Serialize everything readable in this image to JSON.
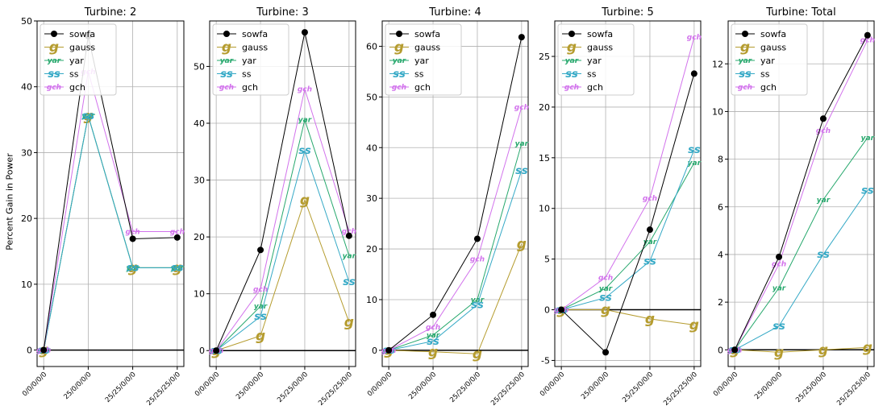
{
  "figure": {
    "ylabel": "Percent Gain in Power",
    "colors": {
      "sowfa": "#000000",
      "gauss": "#b59c2f",
      "yar": "#27a86d",
      "ss": "#35a9c6",
      "gch": "#d273ec"
    },
    "legend_order": [
      "sowfa",
      "gauss",
      "yar",
      "ss",
      "gch"
    ],
    "marker_glyphs": {
      "gauss": "g",
      "yar": "yar",
      "ss": "ss",
      "gch": "gch"
    },
    "legend_position": "upper-right"
  },
  "chart_data": [
    {
      "type": "line",
      "title": "Turbine: 2",
      "categories": [
        "0/0/0/0/0",
        "25/0/0/0/0",
        "25/25/0/0/0",
        "25/25/25/0/0"
      ],
      "ylim": [
        -2.5,
        50
      ],
      "yticks": [
        0,
        10,
        20,
        30,
        40,
        50
      ],
      "grid": true,
      "series": [
        {
          "name": "sowfa",
          "values": [
            0,
            47.7,
            16.9,
            17.1
          ]
        },
        {
          "name": "gauss",
          "values": [
            0,
            35.6,
            12.5,
            12.5
          ]
        },
        {
          "name": "yar",
          "values": [
            0,
            35.6,
            12.5,
            12.5
          ]
        },
        {
          "name": "ss",
          "values": [
            0,
            35.6,
            12.5,
            12.5
          ]
        },
        {
          "name": "gch",
          "values": [
            0,
            42.3,
            18.0,
            18.0
          ]
        }
      ]
    },
    {
      "type": "line",
      "title": "Turbine: 3",
      "categories": [
        "0/0/0/0/0",
        "25/0/0/0/0",
        "25/25/0/0/0",
        "25/25/25/0/0"
      ],
      "ylim": [
        -2.8,
        58
      ],
      "yticks": [
        0,
        10,
        20,
        30,
        40,
        50
      ],
      "grid": true,
      "series": [
        {
          "name": "sowfa",
          "values": [
            0,
            17.7,
            56.0,
            20.2
          ]
        },
        {
          "name": "gauss",
          "values": [
            0,
            2.6,
            26.5,
            5.0
          ]
        },
        {
          "name": "yar",
          "values": [
            0,
            7.8,
            40.6,
            16.7
          ]
        },
        {
          "name": "ss",
          "values": [
            0,
            6.0,
            35.2,
            12.1
          ]
        },
        {
          "name": "gch",
          "values": [
            0,
            10.8,
            46.0,
            21.0
          ]
        }
      ]
    },
    {
      "type": "line",
      "title": "Turbine: 4",
      "categories": [
        "0/0/0/0/0",
        "25/0/0/0/0",
        "25/25/0/0/0",
        "25/25/25/0/0"
      ],
      "ylim": [
        -3.2,
        65
      ],
      "yticks": [
        0,
        10,
        20,
        30,
        40,
        50,
        60
      ],
      "grid": true,
      "series": [
        {
          "name": "sowfa",
          "values": [
            0,
            7.0,
            22.0,
            61.8
          ]
        },
        {
          "name": "gauss",
          "values": [
            0,
            -0.3,
            -0.7,
            21.0
          ]
        },
        {
          "name": "yar",
          "values": [
            0,
            3.0,
            10.0,
            40.8
          ]
        },
        {
          "name": "ss",
          "values": [
            0,
            1.8,
            9.0,
            35.5
          ]
        },
        {
          "name": "gch",
          "values": [
            0,
            4.6,
            18.0,
            48.0
          ]
        }
      ]
    },
    {
      "type": "line",
      "title": "Turbine: 5",
      "categories": [
        "0/0/0/0/0",
        "25/0/0/0/0",
        "25/25/0/0/0",
        "25/25/25/0/0"
      ],
      "ylim": [
        -5.6,
        28.5
      ],
      "yticks": [
        -5,
        0,
        5,
        10,
        15,
        20,
        25
      ],
      "grid": true,
      "series": [
        {
          "name": "sowfa",
          "values": [
            0,
            -4.2,
            7.9,
            23.3
          ]
        },
        {
          "name": "gauss",
          "values": [
            0,
            0.0,
            -0.9,
            -1.5
          ]
        },
        {
          "name": "yar",
          "values": [
            0,
            2.1,
            6.7,
            14.5
          ]
        },
        {
          "name": "ss",
          "values": [
            0,
            1.2,
            4.8,
            15.8
          ]
        },
        {
          "name": "gch",
          "values": [
            0,
            3.2,
            11.0,
            26.9
          ]
        }
      ]
    },
    {
      "type": "line",
      "title": "Turbine: Total",
      "categories": [
        "0/0/0/0/0",
        "25/0/0/0/0",
        "25/25/0/0/0",
        "25/25/25/0/0"
      ],
      "ylim": [
        -0.7,
        13.8
      ],
      "yticks": [
        0,
        2,
        4,
        6,
        8,
        10,
        12
      ],
      "grid": true,
      "series": [
        {
          "name": "sowfa",
          "values": [
            0,
            3.9,
            9.7,
            13.2
          ]
        },
        {
          "name": "gauss",
          "values": [
            0,
            -0.1,
            0.0,
            0.1
          ]
        },
        {
          "name": "yar",
          "values": [
            0,
            2.6,
            6.3,
            8.9
          ]
        },
        {
          "name": "ss",
          "values": [
            0,
            1.0,
            4.0,
            6.7
          ]
        },
        {
          "name": "gch",
          "values": [
            0,
            3.6,
            9.2,
            13.0
          ]
        }
      ]
    }
  ]
}
